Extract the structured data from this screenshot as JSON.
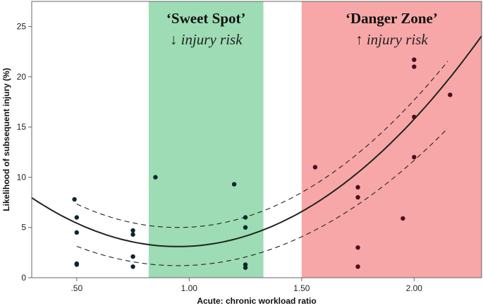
{
  "chart_data": {
    "type": "scatter",
    "title": "",
    "xlabel": "Acute: chronic workload ratio",
    "ylabel": "Likelihood of subsequent injury (%)",
    "xlim": [
      0.3,
      2.3
    ],
    "ylim": [
      0,
      27.5
    ],
    "xticks": [
      {
        "value": 0.5,
        "label": ".50"
      },
      {
        "value": 1.0,
        "label": "1.00"
      },
      {
        "value": 1.5,
        "label": "1.50"
      },
      {
        "value": 2.0,
        "label": "2.00"
      }
    ],
    "yticks": [
      {
        "value": 0,
        "label": "0"
      },
      {
        "value": 5,
        "label": "5"
      },
      {
        "value": 10,
        "label": "10"
      },
      {
        "value": 15,
        "label": "15"
      },
      {
        "value": 20,
        "label": "20"
      },
      {
        "value": 25,
        "label": "25"
      }
    ],
    "zones": [
      {
        "name": "sweet-spot",
        "x_from": 0.82,
        "x_to": 1.33,
        "color": "#9ddcb4",
        "title": "‘Sweet Spot’",
        "subtitle": "↓ injury risk"
      },
      {
        "name": "danger-zone",
        "x_from": 1.5,
        "x_to": 2.3,
        "color": "#f7a7a7",
        "title": "‘Danger Zone’",
        "subtitle": "↑ injury risk"
      }
    ],
    "points": [
      {
        "x": 0.49,
        "y": 7.8
      },
      {
        "x": 0.5,
        "y": 6.0
      },
      {
        "x": 0.5,
        "y": 4.5
      },
      {
        "x": 0.5,
        "y": 1.4
      },
      {
        "x": 0.5,
        "y": 1.3
      },
      {
        "x": 0.75,
        "y": 4.7
      },
      {
        "x": 0.75,
        "y": 4.3
      },
      {
        "x": 0.75,
        "y": 2.1
      },
      {
        "x": 0.75,
        "y": 1.1
      },
      {
        "x": 0.85,
        "y": 10.0
      },
      {
        "x": 1.2,
        "y": 9.3
      },
      {
        "x": 1.25,
        "y": 6.0
      },
      {
        "x": 1.25,
        "y": 5.0
      },
      {
        "x": 1.25,
        "y": 1.3
      },
      {
        "x": 1.25,
        "y": 1.0
      },
      {
        "x": 1.56,
        "y": 11.0
      },
      {
        "x": 1.75,
        "y": 9.0
      },
      {
        "x": 1.75,
        "y": 8.0
      },
      {
        "x": 1.75,
        "y": 3.0
      },
      {
        "x": 1.75,
        "y": 1.1
      },
      {
        "x": 1.95,
        "y": 5.9
      },
      {
        "x": 2.0,
        "y": 21.7
      },
      {
        "x": 2.0,
        "y": 21.0
      },
      {
        "x": 2.0,
        "y": 16.0
      },
      {
        "x": 2.0,
        "y": 12.0
      },
      {
        "x": 2.16,
        "y": 18.2
      }
    ],
    "fit": {
      "label": "quadratic fit",
      "vertex_x": 0.95,
      "vertex_y": 3.1,
      "a": 11.5,
      "x_from": 0.3,
      "x_to": 2.3
    },
    "ci_upper": {
      "vertex_x": 0.95,
      "vertex_y": 5.0,
      "a": 11.5,
      "x_from": 0.5,
      "x_to": 2.15
    },
    "ci_lower": {
      "vertex_x": 0.95,
      "vertex_y": 1.2,
      "a": 9.5,
      "x_from": 0.5,
      "x_to": 2.15
    }
  }
}
